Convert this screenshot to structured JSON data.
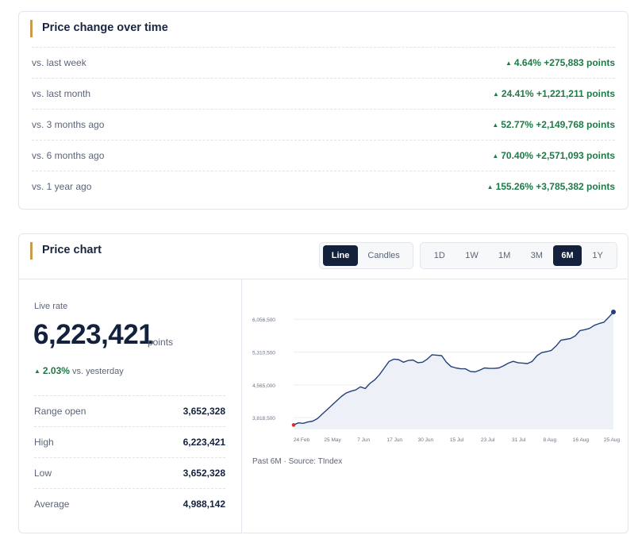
{
  "change_card": {
    "title": "Price change over time",
    "rows": [
      {
        "label": "vs. last week",
        "value": "4.64% +275,883 points"
      },
      {
        "label": "vs. last month",
        "value": "24.41% +1,221,211 points"
      },
      {
        "label": "vs. 3 months ago",
        "value": "52.77% +2,149,768 points"
      },
      {
        "label": "vs. 6 months ago",
        "value": "70.40% +2,571,093 points"
      },
      {
        "label": "vs. 1 year ago",
        "value": "155.26% +3,785,382 points"
      }
    ]
  },
  "chart_card": {
    "title": "Price chart",
    "type_toggle": [
      {
        "label": "Line",
        "active": true
      },
      {
        "label": "Candles",
        "active": false
      }
    ],
    "range_toggle": [
      {
        "label": "1D",
        "active": false
      },
      {
        "label": "1W",
        "active": false
      },
      {
        "label": "1M",
        "active": false
      },
      {
        "label": "3M",
        "active": false
      },
      {
        "label": "6M",
        "active": true
      },
      {
        "label": "1Y",
        "active": false
      }
    ],
    "live_label": "Live rate",
    "live_value": "6,223,421",
    "live_unit": "points",
    "live_change_pct": "2.03%",
    "live_change_vs": "vs. yesterday",
    "stats": [
      {
        "label": "Range open",
        "value": "3,652,328"
      },
      {
        "label": "High",
        "value": "6,223,421"
      },
      {
        "label": "Low",
        "value": "3,652,328"
      },
      {
        "label": "Average",
        "value": "4,988,142"
      }
    ],
    "source_note": "Past 6M · Source: TIndex"
  },
  "colors": {
    "accent": "#c89b4f",
    "positive": "#1e7a47",
    "navy": "#14213d",
    "line": "#23407a",
    "area": "#eef0f7",
    "start_dot": "#d0312d"
  },
  "chart_data": {
    "type": "area",
    "title": "",
    "xlabel": "",
    "ylabel": "",
    "y_ticks": [
      "3,818,500",
      "4,565,000",
      "5,310,500",
      "6,056,500"
    ],
    "y_tick_values": [
      3818500,
      4565000,
      5310500,
      6056500
    ],
    "x_tick_labels": [
      "24 Feb",
      "25 May",
      "7 Jun",
      "17 Jun",
      "30 Jun",
      "15 Jul",
      "23 Jul",
      "31 Jul",
      "8 Aug",
      "16 Aug",
      "25 Aug"
    ],
    "ylim": [
      3550000,
      6350000
    ],
    "grid": true,
    "series": [
      {
        "values": [
          3652328,
          3700000,
          3690000,
          3720000,
          3740000,
          3800000,
          3900000,
          4000000,
          4100000,
          4200000,
          4300000,
          4380000,
          4420000,
          4450000,
          4520000,
          4480000,
          4600000,
          4680000,
          4800000,
          4950000,
          5100000,
          5150000,
          5140000,
          5080000,
          5120000,
          5130000,
          5070000,
          5080000,
          5150000,
          5250000,
          5240000,
          5230000,
          5080000,
          4980000,
          4950000,
          4930000,
          4930000,
          4870000,
          4860000,
          4900000,
          4950000,
          4940000,
          4940000,
          4950000,
          5000000,
          5060000,
          5100000,
          5070000,
          5060000,
          5050000,
          5100000,
          5230000,
          5300000,
          5320000,
          5350000,
          5450000,
          5580000,
          5600000,
          5620000,
          5680000,
          5800000,
          5820000,
          5850000,
          5920000,
          5960000,
          5990000,
          6100000,
          6223421
        ]
      }
    ]
  }
}
